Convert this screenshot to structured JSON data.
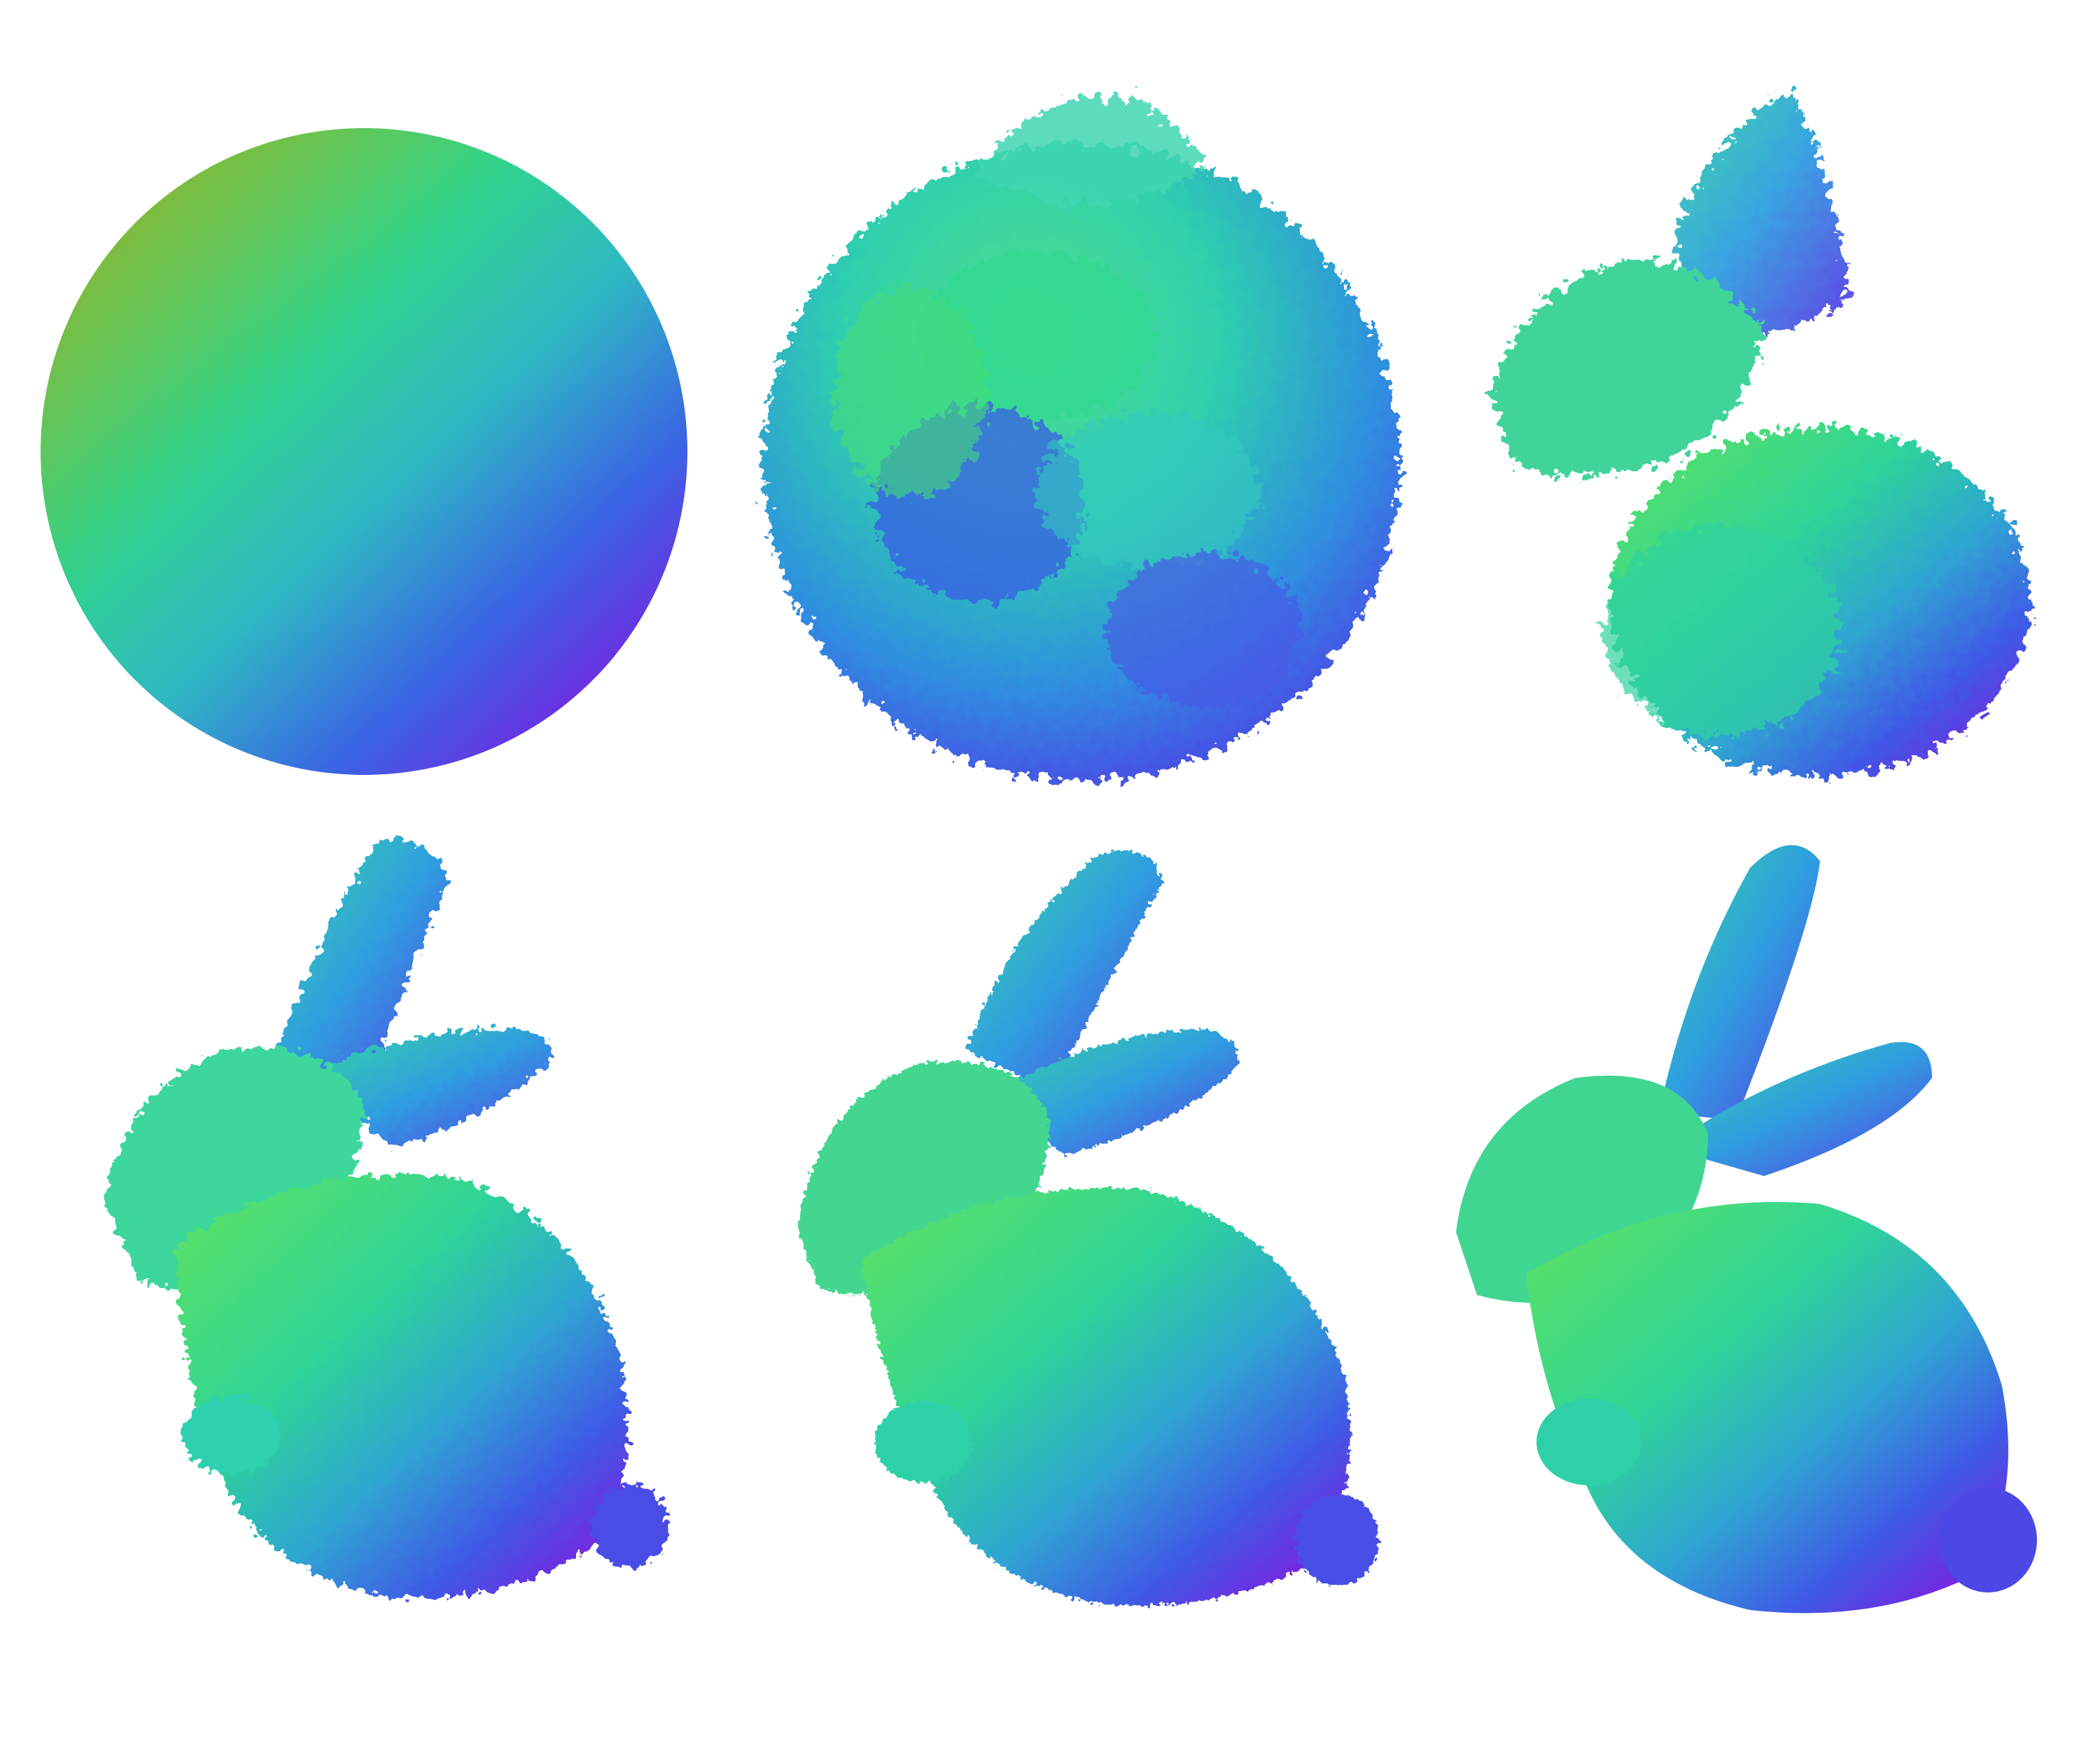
{
  "figure": {
    "panels": [
      {
        "id": "sphere-init",
        "description_shape": "sphere",
        "render": "smooth"
      },
      {
        "id": "blob-early",
        "description_shape": "lumpy-sphere",
        "render": "splat"
      },
      {
        "id": "bunny-rough",
        "description_shape": "bunny-partial",
        "render": "splat"
      },
      {
        "id": "bunny-splat-coarse",
        "description_shape": "bunny",
        "render": "splat"
      },
      {
        "id": "bunny-splat-fine",
        "description_shape": "bunny",
        "render": "splat-dense"
      },
      {
        "id": "bunny-smooth",
        "description_shape": "bunny",
        "render": "smooth"
      }
    ],
    "colors": {
      "background": "#ffffff",
      "normal_green": "#3ce070",
      "normal_cyan": "#2fc6b4",
      "normal_blue": "#3a6ae8",
      "normal_violet": "#7a1fe0",
      "normal_lime": "#7fe24a",
      "normal_olive": "#8a7a2a"
    }
  }
}
